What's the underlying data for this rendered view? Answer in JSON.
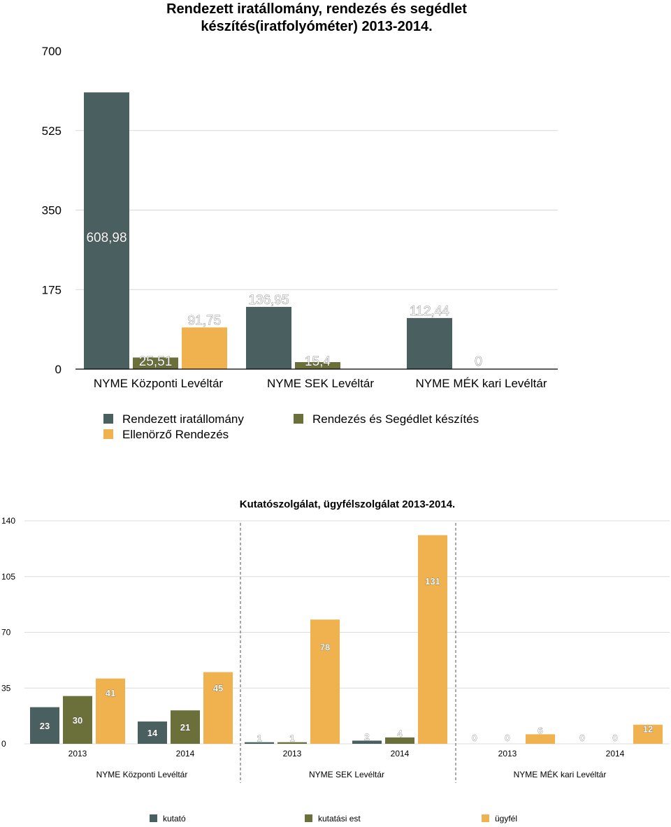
{
  "chart_data": [
    {
      "type": "bar",
      "title": "Rendezett iratállomány, rendezés és segédlet készítés(iratfolyóméter) 2013-2014.",
      "title_lines": [
        "Rendezett iratállomány, rendezés és segédlet",
        "készítés(iratfolyóméter) 2013-2014."
      ],
      "categories": [
        "NYME Központi Levéltár",
        "NYME SEK Levéltár",
        "NYME MÉK kari Levéltár"
      ],
      "series": [
        {
          "name": "Rendezett iratállomány",
          "color": "#4a5f5f",
          "values": [
            608.98,
            136.95,
            112.44
          ],
          "labels": [
            "608,98",
            "136,95",
            "112,44"
          ]
        },
        {
          "name": "Rendezés és Segédlet készítés",
          "color": "#6b6f3a",
          "values": [
            25.51,
            15.4,
            0
          ],
          "labels": [
            "25,51",
            "15,4",
            "0"
          ]
        },
        {
          "name": "Ellenörző Rendezés",
          "color": "#efb24f",
          "values": [
            91.75,
            null,
            null
          ],
          "labels": [
            "91,75",
            "",
            ""
          ]
        }
      ],
      "ylim": [
        0,
        700
      ],
      "yticks": [
        0,
        175,
        350,
        525,
        700
      ],
      "ytick_labels": [
        "0",
        "175",
        "350",
        "525",
        "700"
      ],
      "grid": true,
      "legend_position": "bottom"
    },
    {
      "type": "bar",
      "title": "Kutatószolgálat, ügyfélszolgálat 2013-2014.",
      "groups": [
        "NYME Központi Levéltár",
        "NYME SEK Levéltár",
        "NYME MÉK kari Levéltár"
      ],
      "categories": [
        "2013",
        "2014",
        "2013",
        "2014",
        "2013",
        "2014"
      ],
      "series": [
        {
          "name": "kutató",
          "color": "#4a5f5f",
          "values": [
            23,
            14,
            1,
            2,
            0,
            0
          ]
        },
        {
          "name": "kutatási est",
          "color": "#6b6f3a",
          "values": [
            30,
            21,
            1,
            4,
            0,
            0
          ]
        },
        {
          "name": "ügyfél",
          "color": "#efb24f",
          "values": [
            41,
            45,
            78,
            131,
            6,
            12
          ]
        }
      ],
      "ylim": [
        0,
        140
      ],
      "yticks": [
        0,
        35,
        70,
        105,
        140
      ],
      "ytick_labels": [
        "0",
        "35",
        "70",
        "105",
        "140"
      ],
      "grid": true,
      "legend_position": "bottom"
    }
  ]
}
